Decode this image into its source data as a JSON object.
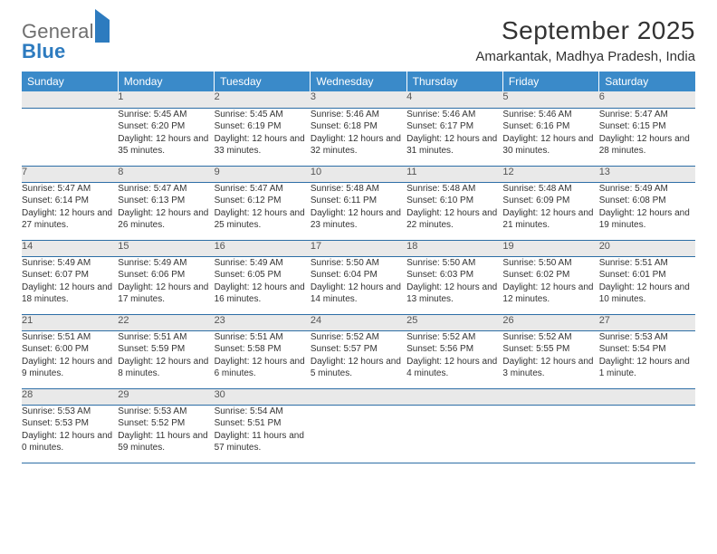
{
  "brand": {
    "word1": "General",
    "word2": "Blue"
  },
  "title": "September 2025",
  "location": "Amarkantak, Madhya Pradesh, India",
  "weekdays": [
    "Sunday",
    "Monday",
    "Tuesday",
    "Wednesday",
    "Thursday",
    "Friday",
    "Saturday"
  ],
  "colors": {
    "header_bg": "#3a8ac9",
    "header_text": "#ffffff",
    "daynum_bg": "#e9e9e9",
    "rule": "#2d6ea6",
    "body_text": "#333333",
    "brand_gray": "#6f6f6f",
    "brand_blue": "#2d7bbf"
  },
  "weeks": [
    [
      {
        "n": "",
        "sr": "",
        "ss": "",
        "dl": ""
      },
      {
        "n": "1",
        "sr": "Sunrise: 5:45 AM",
        "ss": "Sunset: 6:20 PM",
        "dl": "Daylight: 12 hours and 35 minutes."
      },
      {
        "n": "2",
        "sr": "Sunrise: 5:45 AM",
        "ss": "Sunset: 6:19 PM",
        "dl": "Daylight: 12 hours and 33 minutes."
      },
      {
        "n": "3",
        "sr": "Sunrise: 5:46 AM",
        "ss": "Sunset: 6:18 PM",
        "dl": "Daylight: 12 hours and 32 minutes."
      },
      {
        "n": "4",
        "sr": "Sunrise: 5:46 AM",
        "ss": "Sunset: 6:17 PM",
        "dl": "Daylight: 12 hours and 31 minutes."
      },
      {
        "n": "5",
        "sr": "Sunrise: 5:46 AM",
        "ss": "Sunset: 6:16 PM",
        "dl": "Daylight: 12 hours and 30 minutes."
      },
      {
        "n": "6",
        "sr": "Sunrise: 5:47 AM",
        "ss": "Sunset: 6:15 PM",
        "dl": "Daylight: 12 hours and 28 minutes."
      }
    ],
    [
      {
        "n": "7",
        "sr": "Sunrise: 5:47 AM",
        "ss": "Sunset: 6:14 PM",
        "dl": "Daylight: 12 hours and 27 minutes."
      },
      {
        "n": "8",
        "sr": "Sunrise: 5:47 AM",
        "ss": "Sunset: 6:13 PM",
        "dl": "Daylight: 12 hours and 26 minutes."
      },
      {
        "n": "9",
        "sr": "Sunrise: 5:47 AM",
        "ss": "Sunset: 6:12 PM",
        "dl": "Daylight: 12 hours and 25 minutes."
      },
      {
        "n": "10",
        "sr": "Sunrise: 5:48 AM",
        "ss": "Sunset: 6:11 PM",
        "dl": "Daylight: 12 hours and 23 minutes."
      },
      {
        "n": "11",
        "sr": "Sunrise: 5:48 AM",
        "ss": "Sunset: 6:10 PM",
        "dl": "Daylight: 12 hours and 22 minutes."
      },
      {
        "n": "12",
        "sr": "Sunrise: 5:48 AM",
        "ss": "Sunset: 6:09 PM",
        "dl": "Daylight: 12 hours and 21 minutes."
      },
      {
        "n": "13",
        "sr": "Sunrise: 5:49 AM",
        "ss": "Sunset: 6:08 PM",
        "dl": "Daylight: 12 hours and 19 minutes."
      }
    ],
    [
      {
        "n": "14",
        "sr": "Sunrise: 5:49 AM",
        "ss": "Sunset: 6:07 PM",
        "dl": "Daylight: 12 hours and 18 minutes."
      },
      {
        "n": "15",
        "sr": "Sunrise: 5:49 AM",
        "ss": "Sunset: 6:06 PM",
        "dl": "Daylight: 12 hours and 17 minutes."
      },
      {
        "n": "16",
        "sr": "Sunrise: 5:49 AM",
        "ss": "Sunset: 6:05 PM",
        "dl": "Daylight: 12 hours and 16 minutes."
      },
      {
        "n": "17",
        "sr": "Sunrise: 5:50 AM",
        "ss": "Sunset: 6:04 PM",
        "dl": "Daylight: 12 hours and 14 minutes."
      },
      {
        "n": "18",
        "sr": "Sunrise: 5:50 AM",
        "ss": "Sunset: 6:03 PM",
        "dl": "Daylight: 12 hours and 13 minutes."
      },
      {
        "n": "19",
        "sr": "Sunrise: 5:50 AM",
        "ss": "Sunset: 6:02 PM",
        "dl": "Daylight: 12 hours and 12 minutes."
      },
      {
        "n": "20",
        "sr": "Sunrise: 5:51 AM",
        "ss": "Sunset: 6:01 PM",
        "dl": "Daylight: 12 hours and 10 minutes."
      }
    ],
    [
      {
        "n": "21",
        "sr": "Sunrise: 5:51 AM",
        "ss": "Sunset: 6:00 PM",
        "dl": "Daylight: 12 hours and 9 minutes."
      },
      {
        "n": "22",
        "sr": "Sunrise: 5:51 AM",
        "ss": "Sunset: 5:59 PM",
        "dl": "Daylight: 12 hours and 8 minutes."
      },
      {
        "n": "23",
        "sr": "Sunrise: 5:51 AM",
        "ss": "Sunset: 5:58 PM",
        "dl": "Daylight: 12 hours and 6 minutes."
      },
      {
        "n": "24",
        "sr": "Sunrise: 5:52 AM",
        "ss": "Sunset: 5:57 PM",
        "dl": "Daylight: 12 hours and 5 minutes."
      },
      {
        "n": "25",
        "sr": "Sunrise: 5:52 AM",
        "ss": "Sunset: 5:56 PM",
        "dl": "Daylight: 12 hours and 4 minutes."
      },
      {
        "n": "26",
        "sr": "Sunrise: 5:52 AM",
        "ss": "Sunset: 5:55 PM",
        "dl": "Daylight: 12 hours and 3 minutes."
      },
      {
        "n": "27",
        "sr": "Sunrise: 5:53 AM",
        "ss": "Sunset: 5:54 PM",
        "dl": "Daylight: 12 hours and 1 minute."
      }
    ],
    [
      {
        "n": "28",
        "sr": "Sunrise: 5:53 AM",
        "ss": "Sunset: 5:53 PM",
        "dl": "Daylight: 12 hours and 0 minutes."
      },
      {
        "n": "29",
        "sr": "Sunrise: 5:53 AM",
        "ss": "Sunset: 5:52 PM",
        "dl": "Daylight: 11 hours and 59 minutes."
      },
      {
        "n": "30",
        "sr": "Sunrise: 5:54 AM",
        "ss": "Sunset: 5:51 PM",
        "dl": "Daylight: 11 hours and 57 minutes."
      },
      {
        "n": "",
        "sr": "",
        "ss": "",
        "dl": ""
      },
      {
        "n": "",
        "sr": "",
        "ss": "",
        "dl": ""
      },
      {
        "n": "",
        "sr": "",
        "ss": "",
        "dl": ""
      },
      {
        "n": "",
        "sr": "",
        "ss": "",
        "dl": ""
      }
    ]
  ]
}
